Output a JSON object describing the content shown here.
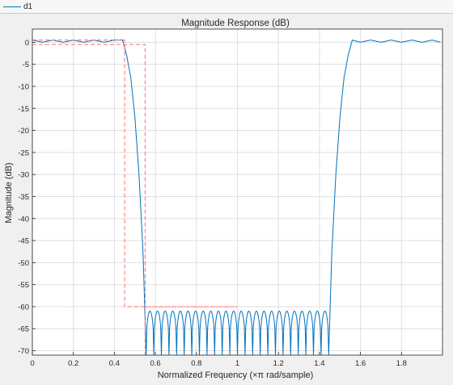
{
  "legend": {
    "entries": [
      {
        "label": "d1",
        "color": "#0072bd"
      }
    ]
  },
  "chart_data": {
    "type": "line",
    "title": "Magnitude Response (dB)",
    "xlabel": "Normalized Frequency (×π rad/sample)",
    "ylabel": "Magnitude (dB)",
    "xlim": [
      0,
      2
    ],
    "ylim": [
      -71,
      3
    ],
    "xticks": [
      0,
      0.2,
      0.4,
      0.6,
      0.8,
      1,
      1.2,
      1.4,
      1.6,
      1.8
    ],
    "xtick_labels": [
      "0",
      "0.2",
      "0.4",
      "0.6",
      "0.8",
      "1",
      "1.2",
      "1.4",
      "1.6",
      "1.8"
    ],
    "yticks": [
      0,
      -5,
      -10,
      -15,
      -20,
      -25,
      -30,
      -35,
      -40,
      -45,
      -50,
      -55,
      -60,
      -65,
      -70
    ],
    "ytick_labels": [
      "0",
      "-5",
      "-10",
      "-15",
      "-20",
      "-25",
      "-30",
      "-35",
      "-40",
      "-45",
      "-50",
      "-55",
      "-60",
      "-65",
      "-70"
    ],
    "grid": true,
    "series": [
      {
        "name": "d1",
        "color": "#0072bd",
        "style": "solid",
        "points": [
          [
            0,
            0.5
          ],
          [
            0.05,
            0
          ],
          [
            0.1,
            0.5
          ],
          [
            0.15,
            0
          ],
          [
            0.2,
            0.5
          ],
          [
            0.25,
            0
          ],
          [
            0.3,
            0.5
          ],
          [
            0.35,
            0
          ],
          [
            0.4,
            0.5
          ],
          [
            0.44,
            0.5
          ],
          [
            0.46,
            -3
          ],
          [
            0.48,
            -8
          ],
          [
            0.5,
            -17
          ],
          [
            0.52,
            -30
          ],
          [
            0.54,
            -48
          ],
          [
            0.555,
            -71
          ],
          [
            1.445,
            -71
          ],
          [
            1.46,
            -48
          ],
          [
            1.48,
            -30
          ],
          [
            1.5,
            -17
          ],
          [
            1.52,
            -8
          ],
          [
            1.54,
            -3
          ],
          [
            1.56,
            0.5
          ],
          [
            1.6,
            0
          ],
          [
            1.65,
            0.5
          ],
          [
            1.7,
            0
          ],
          [
            1.75,
            0.5
          ],
          [
            1.8,
            0
          ],
          [
            1.85,
            0.5
          ],
          [
            1.9,
            0
          ],
          [
            1.95,
            0.5
          ],
          [
            1.99,
            0
          ]
        ],
        "stopband_ripple": {
          "from": 0.555,
          "to": 1.445,
          "lobes": 24,
          "peak": -61,
          "floor": -71
        }
      },
      {
        "name": "",
        "color": "#ff6f6f",
        "style": "dashed",
        "segments": [
          [
            [
              0,
              0.5
            ],
            [
              0.45,
              0.5
            ],
            [
              0.45,
              -60
            ],
            [
              1,
              -60
            ]
          ],
          [
            [
              0,
              -0.5
            ],
            [
              0.55,
              -0.5
            ],
            [
              0.55,
              -71
            ]
          ],
          [
            [
              0.55,
              -60
            ],
            [
              1,
              -60
            ]
          ]
        ]
      }
    ]
  }
}
